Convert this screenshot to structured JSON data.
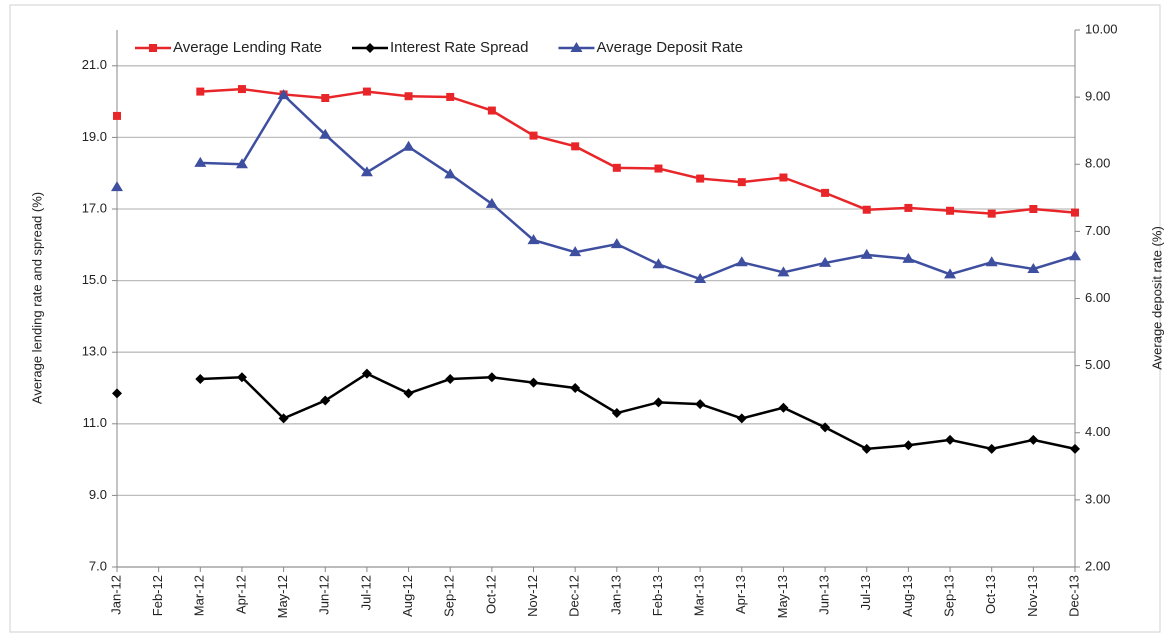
{
  "chart_data": {
    "type": "line",
    "categories": [
      "Jan-12",
      "Feb-12",
      "Mar-12",
      "Apr-12",
      "May-12",
      "Jun-12",
      "Jul-12",
      "Aug-12",
      "Sep-12",
      "Oct-12",
      "Nov-12",
      "Dec-12",
      "Jan-13",
      "Feb-13",
      "Mar-13",
      "Apr-13",
      "May-13",
      "Jun-13",
      "Jul-13",
      "Aug-13",
      "Sep-13",
      "Oct-13",
      "Nov-13",
      "Dec-13"
    ],
    "series": [
      {
        "name": "Average Lending Rate",
        "color": "#e8262a",
        "marker": "square",
        "values": [
          19.6,
          null,
          20.28,
          20.35,
          20.2,
          20.1,
          20.28,
          20.15,
          20.13,
          19.75,
          19.05,
          18.75,
          18.15,
          18.13,
          17.85,
          17.75,
          17.88,
          17.45,
          16.98,
          17.03,
          16.95,
          16.87,
          17.0,
          16.9
        ]
      },
      {
        "name": "Interest Rate Spread",
        "color": "#000000",
        "marker": "diamond",
        "values": [
          11.85,
          null,
          12.25,
          12.3,
          11.15,
          11.65,
          12.4,
          11.85,
          12.25,
          12.3,
          12.15,
          12.0,
          11.3,
          11.6,
          11.55,
          11.15,
          11.45,
          10.9,
          10.3,
          10.4,
          10.55,
          10.3,
          10.55,
          10.3
        ]
      },
      {
        "name": "Average Deposit Rate",
        "color": "#3f4fa0",
        "marker": "triangle",
        "axis": "y2",
        "values": [
          7.66,
          null,
          8.02,
          8.0,
          9.03,
          8.44,
          7.88,
          8.26,
          7.85,
          7.41,
          6.87,
          6.69,
          6.81,
          6.51,
          6.29,
          6.54,
          6.39,
          6.53,
          6.65,
          6.59,
          6.36,
          6.54,
          6.44,
          6.63
        ]
      }
    ],
    "ylabel": "Average lending rate and spread (%)",
    "y2label": "Average deposit rate (%)",
    "ylim": [
      7,
      22
    ],
    "yticks": [
      {
        "value": 7,
        "label": "7.0"
      },
      {
        "value": 9,
        "label": "9.0"
      },
      {
        "value": 11,
        "label": "11.0"
      },
      {
        "value": 13,
        "label": "13.0"
      },
      {
        "value": 15,
        "label": "15.0"
      },
      {
        "value": 17,
        "label": "17.0"
      },
      {
        "value": 19,
        "label": "19.0"
      },
      {
        "value": 21,
        "label": "21.0"
      }
    ],
    "y2lim": [
      2,
      10
    ],
    "y2ticks": [
      {
        "value": 2,
        "label": "2.00"
      },
      {
        "value": 3,
        "label": "3.00"
      },
      {
        "value": 4,
        "label": "4.00"
      },
      {
        "value": 5,
        "label": "5.00"
      },
      {
        "value": 6,
        "label": "6.00"
      },
      {
        "value": 7,
        "label": "7.00"
      },
      {
        "value": 8,
        "label": "8.00"
      },
      {
        "value": 9,
        "label": "9.00"
      },
      {
        "value": 10,
        "label": "10.00"
      }
    ],
    "grid": true,
    "legend": "top"
  }
}
